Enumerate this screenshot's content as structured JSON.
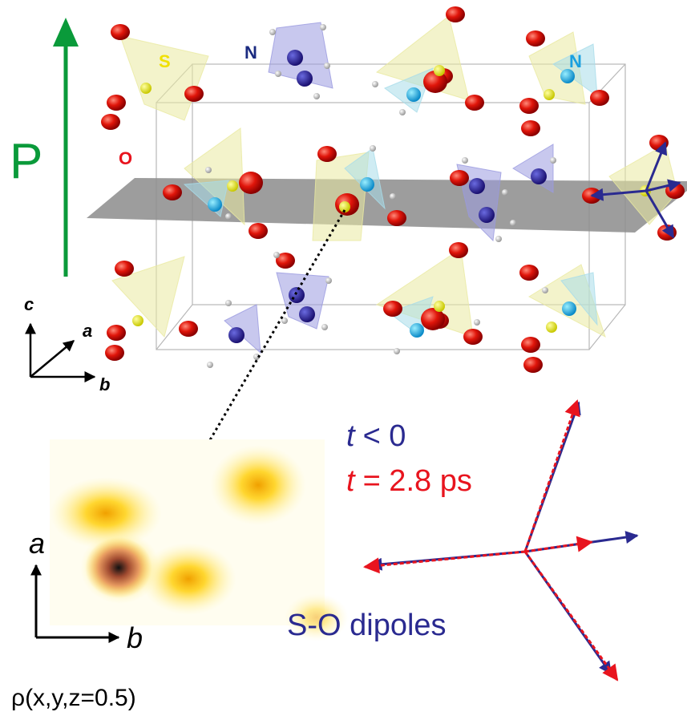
{
  "figure": {
    "polarization_label": "P",
    "atom_labels": [
      "S",
      "N",
      "N",
      "O"
    ],
    "crystal_axes": {
      "c": "c",
      "a": "a",
      "b": "b"
    },
    "legend": [
      {
        "symbol": "t",
        "text": "< 0"
      },
      {
        "symbol": "t",
        "text": "= 2.8 ps"
      }
    ],
    "dipoles_label": "S-O dipoles",
    "map_axes": {
      "a": "a",
      "b": "b"
    },
    "map_caption": "ρ(x,y,z=0.5)"
  }
}
